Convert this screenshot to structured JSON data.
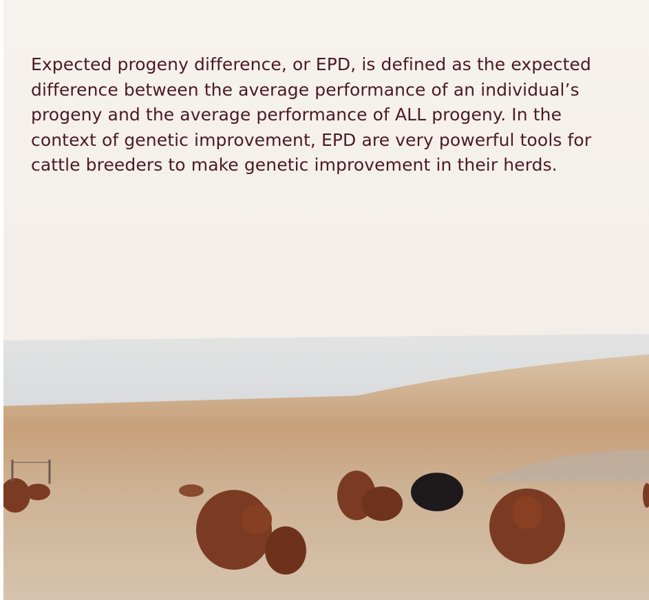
{
  "body": {
    "paragraph": "Expected progeny difference, or EPD, is defined as the expected difference between the average performance of an individual’s progeny and the average performance of ALL progeny. In the context of genetic improvement, EPD are very powerful tools for cattle breeders to make genetic improvement in their herds."
  }
}
